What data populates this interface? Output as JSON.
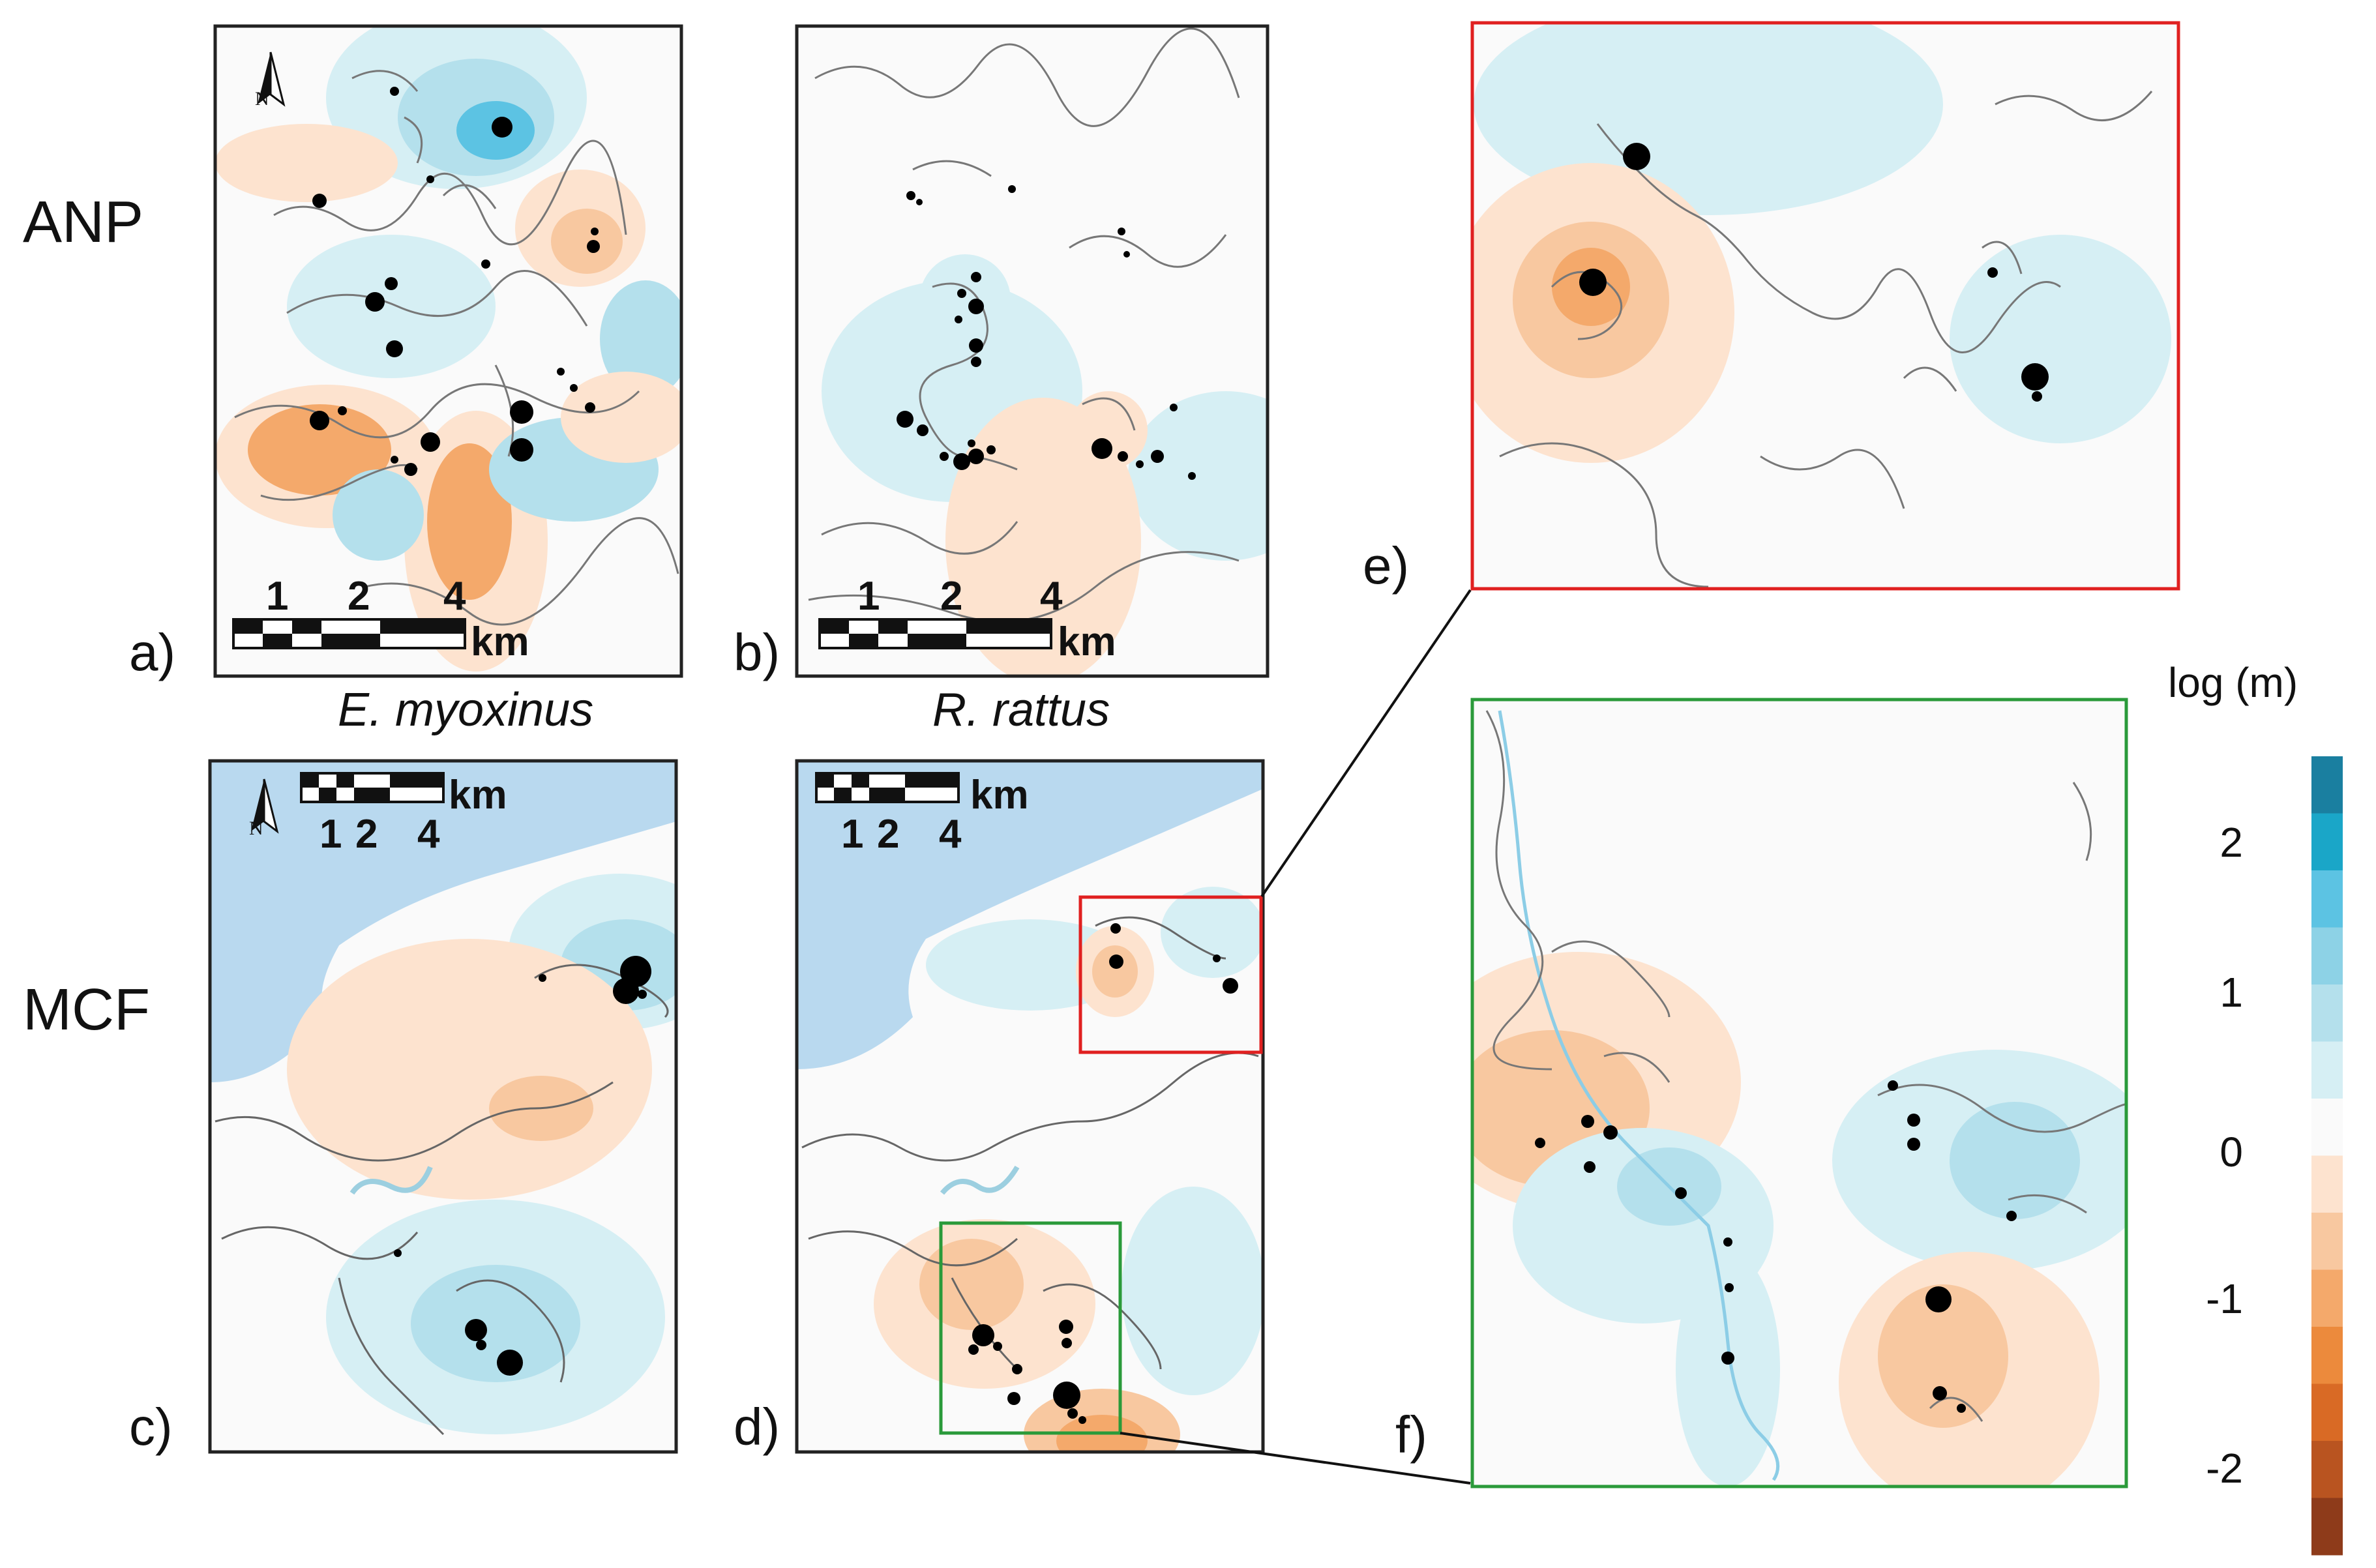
{
  "rows": [
    "ANP",
    "MCF"
  ],
  "species": [
    "E. myoxinus",
    "R. rattus"
  ],
  "panels": [
    "a)",
    "b)",
    "c)",
    "d)",
    "e)",
    "f)"
  ],
  "north_label": "N",
  "scale_bar": {
    "ticks": [
      "1",
      "2",
      "4"
    ],
    "unit": "km"
  },
  "legend": {
    "title": "log (m)",
    "ticks": [
      "2",
      "1",
      "0",
      "-1",
      "-2"
    ],
    "colors": [
      "#1a7fa0",
      "#1aa6c8",
      "#5cc3e3",
      "#8dd2e6",
      "#b4e0ec",
      "#d6eff4",
      "#fafafa",
      "#fde3cf",
      "#f8c8a0",
      "#f4a96b",
      "#ec8a3c",
      "#d96a25",
      "#b95420",
      "#8e3b1a"
    ]
  },
  "colors": {
    "blue_light": "#d6eff4",
    "blue_mid": "#b4e0ec",
    "blue_deep": "#8dd2e6",
    "blue_dark": "#5cc3e3",
    "orange_light": "#fde3cf",
    "orange_mid": "#f8c8a0",
    "orange_deep": "#f4a96b",
    "water": "#b9d9ef",
    "frame_red": "#e02020",
    "frame_green": "#2a9a3a",
    "outline": "#777777"
  }
}
